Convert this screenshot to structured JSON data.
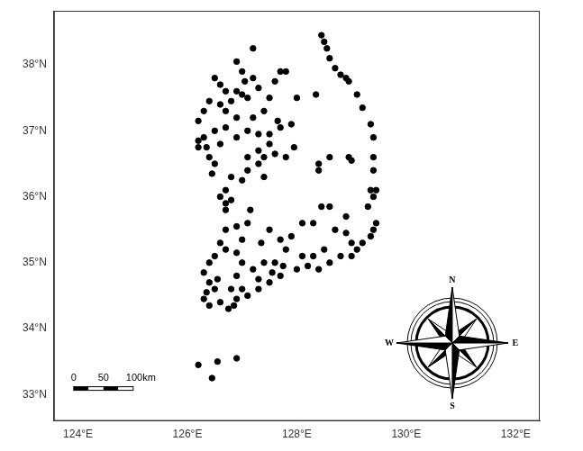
{
  "chart_data": {
    "type": "scatter",
    "x": [
      128.45,
      128.5,
      128.55,
      128.6,
      128.7,
      128.8,
      128.9,
      128.95,
      129.1,
      129.2,
      129.35,
      129.4,
      129.4,
      129.4,
      129.35,
      129.45,
      129.4,
      129.3,
      129.45,
      129.4,
      129.35,
      129.2,
      129.1,
      129.0,
      128.8,
      128.6,
      128.4,
      128.2,
      128.0,
      127.7,
      127.5,
      127.3,
      127.1,
      128.6,
      128.95,
      129.0,
      128.4,
      128.4,
      128.45,
      128.6,
      128.9,
      128.1,
      128.3,
      128.7,
      128.9,
      129.0,
      128.5,
      128.3,
      128.1,
      127.8,
      127.7,
      127.9,
      127.6,
      128.35,
      128.0,
      127.7,
      127.8,
      127.6,
      126.5,
      126.6,
      126.7,
      126.9,
      127.0,
      127.1,
      126.8,
      126.6,
      126.4,
      126.7,
      126.9,
      127.2,
      127.4,
      127.5,
      127.3,
      127.2,
      127.0,
      126.9,
      127.2,
      127.05,
      126.7,
      126.5,
      126.3,
      126.2,
      126.2,
      126.35,
      126.4,
      126.5,
      126.6,
      126.9,
      127.1,
      127.3,
      127.5,
      127.7,
      127.9,
      127.5,
      127.4,
      127.3,
      127.1,
      127.0,
      126.8,
      126.7,
      126.6,
      126.7,
      126.7,
      126.8,
      127.1,
      127.4,
      127.3,
      127.6,
      127.8,
      127.95,
      127.65,
      126.3,
      126.2,
      126.45,
      127.15,
      127.1,
      126.9,
      126.7,
      126.6,
      126.5,
      126.4,
      126.3,
      126.4,
      126.5,
      126.35,
      126.3,
      126.4,
      126.6,
      126.75,
      126.85,
      126.9,
      126.8,
      126.9,
      127.0,
      127.2,
      127.4,
      126.9,
      126.7,
      126.55,
      127.0,
      127.3,
      127.55,
      127.75,
      127.35,
      127.5,
      127.0,
      126.2,
      126.55,
      126.9,
      126.45
    ],
    "values": [
      38.45,
      38.35,
      38.25,
      38.1,
      37.95,
      37.85,
      37.8,
      37.75,
      37.55,
      37.35,
      37.1,
      36.9,
      36.6,
      36.4,
      36.1,
      36.1,
      36.0,
      35.85,
      35.6,
      35.5,
      35.4,
      35.3,
      35.2,
      35.1,
      35.1,
      35.0,
      34.9,
      34.95,
      34.9,
      34.8,
      34.7,
      34.6,
      34.5,
      36.6,
      36.6,
      36.55,
      36.5,
      36.4,
      35.85,
      35.85,
      35.7,
      35.6,
      35.6,
      35.5,
      35.45,
      35.3,
      35.2,
      35.1,
      35.1,
      35.2,
      35.35,
      35.4,
      35.0,
      37.55,
      37.5,
      37.9,
      37.9,
      37.75,
      37.8,
      37.7,
      37.6,
      37.6,
      37.55,
      37.5,
      37.45,
      37.4,
      37.45,
      37.3,
      37.2,
      37.2,
      37.3,
      37.5,
      37.65,
      37.8,
      37.9,
      38.05,
      38.25,
      37.75,
      37.05,
      37.0,
      36.9,
      36.85,
      36.75,
      36.75,
      36.6,
      36.5,
      36.8,
      36.9,
      37.0,
      36.95,
      36.95,
      37.05,
      37.1,
      36.8,
      36.6,
      36.5,
      36.4,
      36.25,
      36.3,
      36.1,
      36.0,
      35.9,
      35.8,
      35.95,
      36.6,
      36.3,
      36.7,
      36.65,
      36.6,
      36.75,
      37.15,
      37.3,
      37.15,
      36.35,
      35.8,
      35.6,
      35.55,
      35.5,
      35.3,
      35.1,
      35.0,
      34.85,
      34.7,
      34.6,
      34.55,
      34.45,
      34.35,
      34.4,
      34.3,
      34.35,
      34.45,
      34.6,
      34.8,
      35.0,
      34.9,
      35.0,
      35.15,
      35.2,
      34.75,
      34.6,
      34.75,
      34.85,
      34.95,
      35.3,
      35.5,
      35.35,
      33.45,
      33.5,
      33.55,
      33.25
    ],
    "color": "#000000",
    "marker": "circle",
    "xlim": [
      123.56,
      132.44
    ],
    "ylim": [
      32.6,
      38.82
    ],
    "xticks": [
      {
        "value": 124,
        "label": "124°E"
      },
      {
        "value": 126,
        "label": "126°E"
      },
      {
        "value": 128,
        "label": "128°E"
      },
      {
        "value": 130,
        "label": "130°E"
      },
      {
        "value": 132,
        "label": "132°E"
      }
    ],
    "yticks": [
      {
        "value": 33,
        "label": "33°N"
      },
      {
        "value": 34,
        "label": "34°N"
      },
      {
        "value": 35,
        "label": "35°N"
      },
      {
        "value": 36,
        "label": "36°N"
      },
      {
        "value": 37,
        "label": "37°N"
      },
      {
        "value": 38,
        "label": "38°N"
      }
    ],
    "grid": false,
    "annotations": {
      "scale_bar": [
        "0",
        "50",
        "100km"
      ],
      "compass": [
        "N",
        "E",
        "S",
        "W"
      ]
    }
  }
}
